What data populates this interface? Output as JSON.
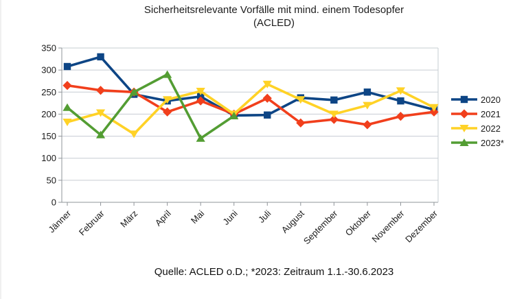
{
  "chart_data": {
    "type": "line",
    "title": "Sicherheitsrelevante Vorfälle mit mind. einem Todesopfer",
    "title_line2": "(ACLED)",
    "source_note": "Quelle: ACLED o.D.; *2023: Zeitraum 1.1.-30.6.2023",
    "categories": [
      "Jänner",
      "Februar",
      "März",
      "April",
      "Mai",
      "Juni",
      "Juli",
      "August",
      "September",
      "Oktober",
      "November",
      "Dezember"
    ],
    "xlabel": "",
    "ylabel": "",
    "ylim": [
      0,
      350
    ],
    "yticks": [
      0,
      50,
      100,
      150,
      200,
      250,
      300,
      350
    ],
    "grid": true,
    "legend_position": "right",
    "series": [
      {
        "name": "2020",
        "color": "#0d4585",
        "marker": "square",
        "values": [
          308,
          330,
          245,
          230,
          240,
          197,
          198,
          237,
          232,
          250,
          230,
          210
        ]
      },
      {
        "name": "2021",
        "color": "#f13f1c",
        "marker": "diamond",
        "values": [
          265,
          254,
          250,
          205,
          230,
          200,
          236,
          180,
          188,
          176,
          195,
          205
        ]
      },
      {
        "name": "2022",
        "color": "#ffd226",
        "marker": "triangle-down",
        "values": [
          182,
          203,
          155,
          233,
          252,
          200,
          268,
          233,
          200,
          220,
          253,
          215
        ]
      },
      {
        "name": "2023*",
        "color": "#539d33",
        "marker": "triangle-up",
        "values": [
          215,
          153,
          250,
          290,
          145,
          196,
          null,
          null,
          null,
          null,
          null,
          null
        ]
      }
    ],
    "grid_color": "#c6ccd2",
    "axis_color": "#8f9499",
    "tick_label_color": "#1a1a1a"
  }
}
